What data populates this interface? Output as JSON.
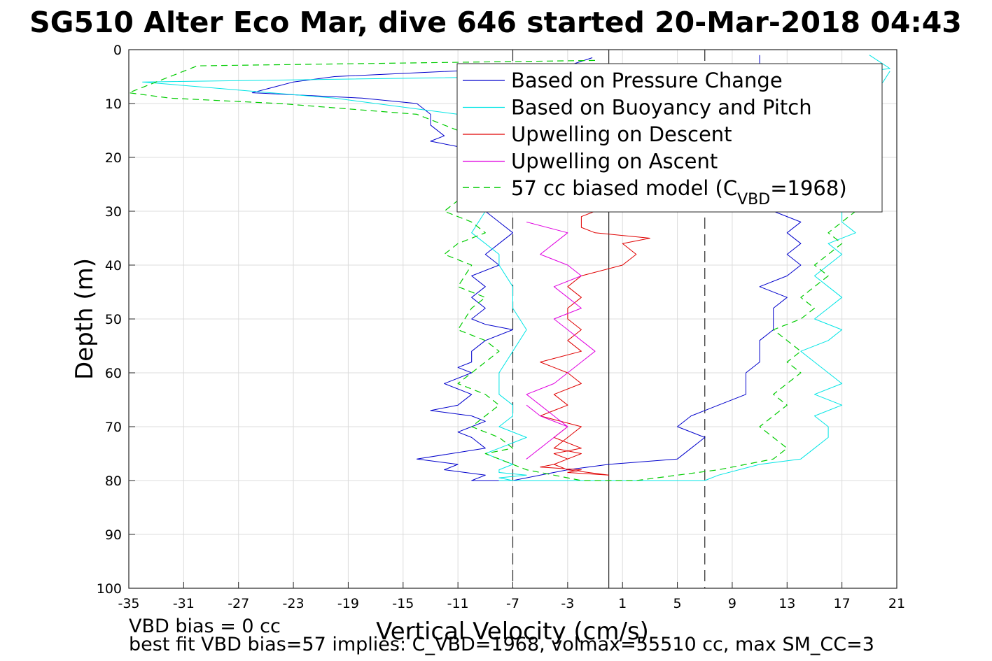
{
  "figure": {
    "title": "SG510 Alter Eco Mar, dive 646 started 20-Mar-2018 04:43",
    "footer_line1": "VBD bias = 0 cc",
    "footer_line2": "best fit VBD bias=57 implies: C_VBD=1968, volmax=55510 cc, max SM_CC=3"
  },
  "legend": {
    "items": [
      {
        "label": "Based on Pressure Change",
        "color": "#0000cc"
      },
      {
        "label": "Based on Buoyancy and Pitch",
        "color": "#00e5e5"
      },
      {
        "label": "Upwelling on Descent",
        "color": "#e00000"
      },
      {
        "label": "Upwelling on Ascent",
        "color": "#e000e0"
      }
    ],
    "model": {
      "label_pre": "57 cc biased model (C",
      "label_sub": "VBD",
      "label_post": "=1968)",
      "color": "#00cc00"
    }
  },
  "chart_data": {
    "type": "line",
    "xlabel": "Vertical Velocity (cm/s)",
    "ylabel": "Depth (m)",
    "xlim": [
      -35,
      21
    ],
    "ylim": [
      100,
      0
    ],
    "xticks": [
      -35,
      -31,
      -27,
      -23,
      -19,
      -15,
      -11,
      -7,
      -3,
      1,
      5,
      9,
      13,
      17,
      21
    ],
    "yticks": [
      0,
      10,
      20,
      30,
      40,
      50,
      60,
      70,
      80,
      90,
      100
    ],
    "grid": true,
    "legend_position": "top-right",
    "reference_lines": [
      {
        "x": 0,
        "style": "solid"
      },
      {
        "x": -7,
        "style": "dashed"
      },
      {
        "x": 7,
        "style": "dashed"
      }
    ],
    "series": [
      {
        "name": "Based on Pressure Change",
        "color": "#0000cc",
        "style": "solid",
        "x": [
          -1.2,
          -3,
          -20,
          -23,
          -26,
          -18,
          -14,
          -13,
          -13,
          -12,
          -13,
          -11,
          -10,
          -9,
          -9,
          -8,
          -9,
          -9,
          -8,
          -7,
          -8,
          -9,
          -8,
          -10,
          -9,
          -10,
          -9,
          -10,
          -9,
          -7,
          -9,
          -10,
          -10,
          -11,
          -10,
          -12,
          -10,
          -11,
          -13,
          -10,
          -9,
          -10,
          -11,
          -10,
          -9,
          -14,
          -11,
          -12,
          -9,
          -10,
          -7,
          -5,
          -3,
          0,
          5,
          6,
          7,
          5,
          6,
          8,
          10,
          10,
          10,
          11,
          11,
          11,
          12,
          12,
          12,
          13,
          11,
          13,
          14,
          13,
          14,
          13,
          14,
          12,
          13,
          13,
          12,
          13,
          14,
          12,
          13,
          13,
          12,
          11,
          11,
          11
        ],
        "y": [
          1.5,
          3,
          5,
          6,
          8,
          9,
          10,
          12,
          14,
          16,
          17,
          18,
          20,
          22,
          24,
          26,
          28,
          30,
          32,
          34,
          36,
          38,
          40,
          42,
          44,
          46,
          48,
          50,
          51,
          52,
          54,
          56,
          58,
          59,
          60,
          62,
          64,
          66,
          67,
          68,
          69,
          70,
          71,
          72,
          74,
          76,
          77,
          78,
          79,
          80,
          80,
          79,
          78,
          77,
          76,
          74,
          72,
          70,
          68,
          66,
          64,
          62,
          60,
          58,
          56,
          54,
          52,
          50,
          48,
          46,
          44,
          42,
          40,
          38,
          36,
          34,
          32,
          30,
          28,
          26,
          24,
          22,
          20,
          18,
          16,
          14,
          12,
          10,
          6,
          1
        ]
      },
      {
        "name": "Based on Buoyancy and Pitch",
        "color": "#00e5e5",
        "style": "solid",
        "x": [
          19,
          20.5,
          19,
          -6,
          -34,
          -20,
          -11,
          -10,
          -9,
          -8,
          -8,
          -7,
          -7,
          -7,
          -8,
          -9,
          -10,
          -8,
          -8,
          -7,
          -7,
          -6,
          -7,
          -8,
          -8,
          -7,
          -7,
          -8,
          -6,
          -8,
          -9,
          -8,
          -7,
          -8,
          -8,
          -6,
          -8,
          -7,
          -7,
          -8,
          -8,
          -7,
          -8,
          -5,
          -3,
          -1,
          5,
          7,
          8,
          11,
          14,
          15,
          16,
          16,
          15,
          17,
          15,
          17,
          16,
          15,
          14,
          16,
          17,
          15,
          16,
          17,
          16,
          15,
          16,
          17,
          16,
          18,
          17,
          17,
          18,
          17,
          19,
          17,
          18,
          17,
          18,
          18,
          18,
          19,
          19,
          20,
          20.5
        ],
        "y": [
          1,
          3.5,
          4,
          5,
          6,
          9,
          12,
          14,
          16,
          18,
          20,
          22,
          24,
          26,
          28,
          30,
          34,
          38,
          40,
          44,
          48,
          52,
          56,
          60,
          64,
          66,
          68,
          70,
          72,
          74,
          75,
          76,
          77,
          78,
          78.5,
          79,
          79.5,
          80,
          80,
          80,
          80,
          80,
          80,
          80,
          80,
          80,
          80,
          80,
          79,
          77,
          76,
          74,
          72,
          70,
          68,
          66,
          64,
          62,
          60,
          58,
          56,
          54,
          52,
          50,
          48,
          46,
          44,
          42,
          40,
          38,
          36,
          34,
          32,
          30,
          28,
          26,
          24,
          22,
          20,
          18,
          16,
          14,
          12,
          10,
          8,
          6,
          4
        ]
      },
      {
        "name": "Upwelling on Descent",
        "color": "#e00000",
        "style": "solid",
        "x": [
          -1,
          -2,
          -2,
          -1,
          3,
          1,
          2,
          1,
          -2,
          -3,
          -2,
          -3,
          -3,
          -2,
          -3,
          -2,
          -5,
          -4,
          -3,
          -2,
          -4,
          -3,
          -4,
          -5,
          -2,
          -3,
          -4,
          -2,
          -3,
          -4,
          -5,
          -2,
          -3,
          0,
          -3,
          -4,
          -3,
          -4,
          -2,
          -4,
          -3
        ],
        "y": [
          30,
          31,
          33,
          34,
          35,
          36,
          38,
          40,
          42,
          44,
          46,
          48,
          50,
          52,
          54,
          56,
          58,
          59,
          60,
          62,
          64,
          66,
          67,
          68,
          70,
          72,
          74,
          75,
          76,
          77,
          77.5,
          78,
          78.5,
          79,
          78,
          77,
          76,
          75,
          74,
          72,
          70
        ]
      },
      {
        "name": "Upwelling on Ascent",
        "color": "#e000e0",
        "style": "solid",
        "x": [
          -6,
          -3,
          -4,
          -5,
          -3,
          -2,
          -4,
          -3,
          -2,
          -4,
          -3,
          -2,
          -1,
          -2,
          -3,
          -4,
          -6,
          -5,
          -4,
          -3,
          -4,
          -5,
          -6,
          -5,
          -4,
          -3,
          -5,
          -6
        ],
        "y": [
          32,
          34,
          36,
          38,
          40,
          42,
          44,
          46,
          48,
          50,
          52,
          54,
          56,
          58,
          60,
          62,
          64,
          66,
          68,
          70,
          72,
          74,
          76,
          74,
          72,
          70,
          68,
          66
        ]
      },
      {
        "name": "57 cc biased model (CVBD=1968)",
        "color": "#00cc00",
        "style": "dashed",
        "x": [
          -1,
          -30,
          -35,
          -32,
          -24,
          -14,
          -10,
          -11,
          -9,
          -10,
          -11,
          -12,
          -10,
          -9,
          -11,
          -12,
          -10,
          -11,
          -9,
          -10,
          -11,
          -9,
          -8,
          -9,
          -10,
          -11,
          -9,
          -8,
          -9,
          -10,
          -8,
          -7,
          -9,
          -8,
          -7,
          -6,
          -4,
          -2,
          0,
          2,
          5,
          8,
          10,
          12,
          13,
          12,
          11,
          12,
          13,
          12,
          13,
          14,
          13,
          14,
          13,
          12,
          14,
          15,
          14,
          15,
          16,
          15,
          16,
          17,
          16,
          17,
          18,
          17,
          18,
          17,
          18,
          17
        ],
        "y": [
          2,
          3,
          8,
          9,
          10,
          12,
          16,
          20,
          24,
          26,
          28,
          30,
          32,
          34,
          36,
          38,
          40,
          44,
          46,
          48,
          52,
          54,
          56,
          58,
          60,
          62,
          64,
          66,
          68,
          70,
          72,
          74,
          75,
          76,
          77,
          78,
          79,
          80,
          80,
          80,
          79,
          78,
          77,
          76,
          74,
          72,
          70,
          68,
          66,
          64,
          62,
          60,
          58,
          56,
          54,
          52,
          50,
          48,
          46,
          44,
          42,
          40,
          38,
          36,
          34,
          32,
          30,
          28,
          26,
          24,
          22,
          20
        ]
      }
    ]
  }
}
